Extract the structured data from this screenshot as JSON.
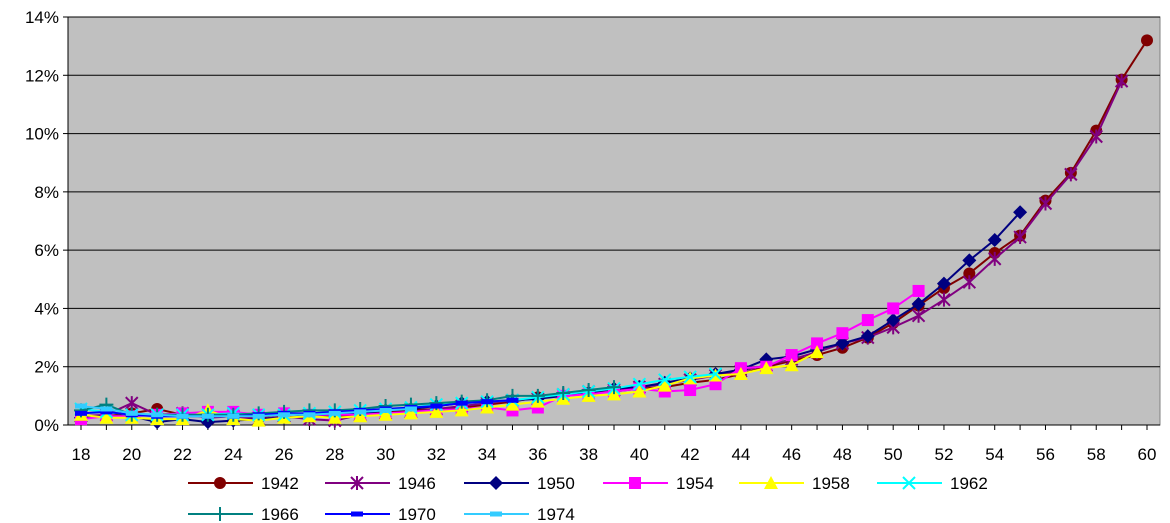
{
  "chart_data": {
    "type": "line",
    "title": "",
    "xlabel": "",
    "ylabel": "",
    "xlim": [
      18,
      60
    ],
    "ylim": [
      0,
      14
    ],
    "x_ticks": [
      "18",
      "20",
      "22",
      "24",
      "26",
      "28",
      "30",
      "32",
      "34",
      "36",
      "38",
      "40",
      "42",
      "44",
      "46",
      "48",
      "50",
      "52",
      "54",
      "56",
      "58",
      "60"
    ],
    "y_ticks": [
      "0%",
      "2%",
      "4%",
      "6%",
      "8%",
      "10%",
      "12%",
      "14%"
    ],
    "grid": "horizontal",
    "plot_background": "#c0c0c0",
    "legend_position": "bottom",
    "series": [
      {
        "name": "1942",
        "color": "#800000",
        "marker": "circle",
        "x": [
          18,
          19,
          20,
          21,
          22,
          23,
          24,
          25,
          26,
          27,
          28,
          29,
          30,
          31,
          32,
          33,
          34,
          35,
          36,
          37,
          38,
          39,
          40,
          41,
          42,
          43,
          44,
          45,
          46,
          47,
          48,
          49,
          50,
          51,
          52,
          53,
          54,
          55,
          56,
          57,
          58,
          59,
          60
        ],
        "y": [
          0.3,
          0.3,
          0.4,
          0.55,
          0.35,
          0.3,
          0.3,
          0.25,
          0.4,
          0.3,
          0.3,
          0.35,
          0.45,
          0.5,
          0.55,
          0.6,
          0.7,
          0.8,
          0.95,
          1.0,
          1.1,
          1.15,
          1.25,
          1.3,
          1.45,
          1.55,
          1.75,
          2.0,
          2.2,
          2.4,
          2.65,
          3.0,
          3.5,
          4.1,
          4.7,
          5.2,
          5.9,
          6.5,
          7.7,
          8.65,
          10.1,
          11.85,
          13.2
        ]
      },
      {
        "name": "1946",
        "color": "#800080",
        "marker": "star",
        "x": [
          18,
          19,
          20,
          21,
          22,
          23,
          24,
          25,
          26,
          27,
          28,
          29,
          30,
          31,
          32,
          33,
          34,
          35,
          36,
          37,
          38,
          39,
          40,
          41,
          42,
          43,
          44,
          45,
          46,
          47,
          48,
          49,
          50,
          51,
          52,
          53,
          54,
          55,
          56,
          57,
          58,
          59
        ],
        "y": [
          0.3,
          0.35,
          0.75,
          0.35,
          0.4,
          0.25,
          0.3,
          0.2,
          0.3,
          0.2,
          0.15,
          0.35,
          0.4,
          0.45,
          0.55,
          0.65,
          0.75,
          0.85,
          0.9,
          1.05,
          1.15,
          1.2,
          1.3,
          1.4,
          1.55,
          1.7,
          1.85,
          2.05,
          2.25,
          2.5,
          2.8,
          3.0,
          3.35,
          3.75,
          4.3,
          4.9,
          5.7,
          6.45,
          7.6,
          8.6,
          9.9,
          11.8
        ]
      },
      {
        "name": "1950",
        "color": "#000080",
        "marker": "diamond",
        "x": [
          18,
          19,
          20,
          21,
          22,
          23,
          24,
          25,
          26,
          27,
          28,
          29,
          30,
          31,
          32,
          33,
          34,
          35,
          36,
          37,
          38,
          39,
          40,
          41,
          42,
          43,
          44,
          45,
          46,
          47,
          48,
          49,
          50,
          51,
          52,
          53,
          54,
          55
        ],
        "y": [
          0.25,
          0.3,
          0.3,
          0.1,
          0.2,
          0.1,
          0.15,
          0.2,
          0.25,
          0.3,
          0.35,
          0.4,
          0.5,
          0.55,
          0.65,
          0.75,
          0.8,
          0.85,
          0.9,
          1.0,
          1.1,
          1.25,
          1.3,
          1.45,
          1.6,
          1.75,
          1.9,
          2.25,
          2.35,
          2.6,
          2.8,
          3.05,
          3.6,
          4.15,
          4.85,
          5.65,
          6.35,
          7.3
        ]
      },
      {
        "name": "1954",
        "color": "#ff00ff",
        "marker": "square",
        "x": [
          18,
          19,
          20,
          21,
          22,
          23,
          24,
          25,
          26,
          27,
          28,
          29,
          30,
          31,
          32,
          33,
          34,
          35,
          36,
          37,
          38,
          39,
          40,
          41,
          42,
          43,
          44,
          45,
          46,
          47,
          48,
          49,
          50,
          51
        ],
        "y": [
          0.2,
          0.3,
          0.3,
          0.35,
          0.4,
          0.45,
          0.45,
          0.35,
          0.4,
          0.35,
          0.35,
          0.35,
          0.4,
          0.45,
          0.5,
          0.55,
          0.6,
          0.5,
          0.6,
          1.0,
          1.05,
          1.15,
          1.25,
          1.15,
          1.2,
          1.4,
          1.95,
          2.0,
          2.4,
          2.8,
          3.15,
          3.6,
          4.0,
          4.6
        ]
      },
      {
        "name": "1958",
        "color": "#ffff00",
        "marker": "triangle",
        "x": [
          18,
          19,
          20,
          21,
          22,
          23,
          24,
          25,
          26,
          27,
          28,
          29,
          30,
          31,
          32,
          33,
          34,
          35,
          36,
          37,
          38,
          39,
          40,
          41,
          42,
          43,
          44,
          45,
          46,
          47
        ],
        "y": [
          0.35,
          0.25,
          0.25,
          0.2,
          0.2,
          0.5,
          0.2,
          0.15,
          0.25,
          0.3,
          0.25,
          0.3,
          0.35,
          0.4,
          0.45,
          0.5,
          0.6,
          0.7,
          0.8,
          0.9,
          1.0,
          1.05,
          1.15,
          1.35,
          1.6,
          1.7,
          1.75,
          1.95,
          2.05,
          2.5
        ]
      },
      {
        "name": "1962",
        "color": "#00ffff",
        "marker": "x",
        "x": [
          18,
          19,
          20,
          21,
          22,
          23,
          24,
          25,
          26,
          27,
          28,
          29,
          30,
          31,
          32,
          33,
          34,
          35,
          36,
          37,
          38,
          39,
          40,
          41,
          42,
          43
        ],
        "y": [
          0.55,
          0.45,
          0.35,
          0.35,
          0.35,
          0.35,
          0.4,
          0.35,
          0.35,
          0.4,
          0.45,
          0.5,
          0.55,
          0.6,
          0.7,
          0.75,
          0.8,
          0.85,
          0.95,
          1.05,
          1.15,
          1.25,
          1.4,
          1.55,
          1.65,
          1.75
        ]
      },
      {
        "name": "1966",
        "color": "#008080",
        "marker": "plus",
        "x": [
          18,
          19,
          20,
          21,
          22,
          23,
          24,
          25,
          26,
          27,
          28,
          29,
          30,
          31,
          32,
          33,
          34,
          35,
          36,
          37,
          38,
          39
        ],
        "y": [
          0.5,
          0.7,
          0.35,
          0.35,
          0.35,
          0.35,
          0.35,
          0.4,
          0.45,
          0.5,
          0.5,
          0.55,
          0.65,
          0.7,
          0.75,
          0.8,
          0.85,
          1.0,
          1.0,
          1.1,
          1.2,
          1.3
        ]
      },
      {
        "name": "1970",
        "color": "#0000ff",
        "marker": "dash",
        "x": [
          18,
          19,
          20,
          21,
          22,
          23,
          24,
          25,
          26,
          27,
          28,
          29,
          30,
          31,
          32,
          33,
          34,
          35
        ],
        "y": [
          0.4,
          0.45,
          0.35,
          0.3,
          0.3,
          0.3,
          0.3,
          0.35,
          0.4,
          0.4,
          0.45,
          0.5,
          0.55,
          0.6,
          0.65,
          0.75,
          0.8,
          0.85
        ]
      },
      {
        "name": "1974",
        "color": "#33ccff",
        "marker": "dash",
        "x": [
          18,
          19,
          20,
          21,
          22,
          23,
          24,
          25,
          26,
          27,
          28,
          29,
          30,
          31
        ],
        "y": [
          0.65,
          0.55,
          0.4,
          0.35,
          0.3,
          0.3,
          0.3,
          0.3,
          0.35,
          0.35,
          0.4,
          0.45,
          0.5,
          0.55
        ]
      }
    ]
  }
}
